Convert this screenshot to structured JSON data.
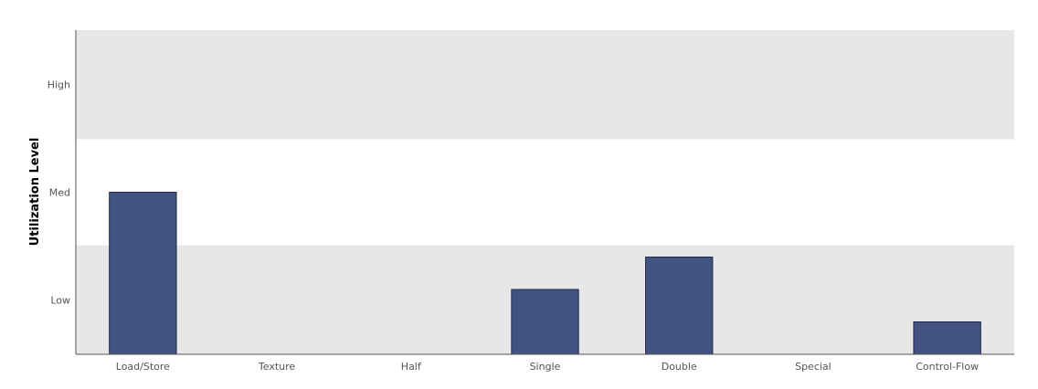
{
  "chart_data": {
    "type": "bar",
    "title": "",
    "xlabel": "",
    "ylabel": "Utilization Level",
    "categories": [
      "Load/Store",
      "Texture",
      "Half",
      "Single",
      "Double",
      "Special",
      "Control-Flow"
    ],
    "values": [
      5.5,
      0,
      0,
      2.2,
      3.3,
      0,
      1.1
    ],
    "ylim": [
      0,
      11
    ],
    "y_levels": [
      {
        "label": "Low",
        "range": [
          0,
          3.7
        ]
      },
      {
        "label": "Med",
        "range": [
          3.7,
          7.3
        ]
      },
      {
        "label": "High",
        "range": [
          7.3,
          11
        ]
      }
    ],
    "band_color": "#e7e7e7",
    "bar_color": "#435381",
    "bar_edge_color": "#1f2a4a",
    "axis_color": "#555555",
    "grid": false,
    "legend": "none"
  }
}
